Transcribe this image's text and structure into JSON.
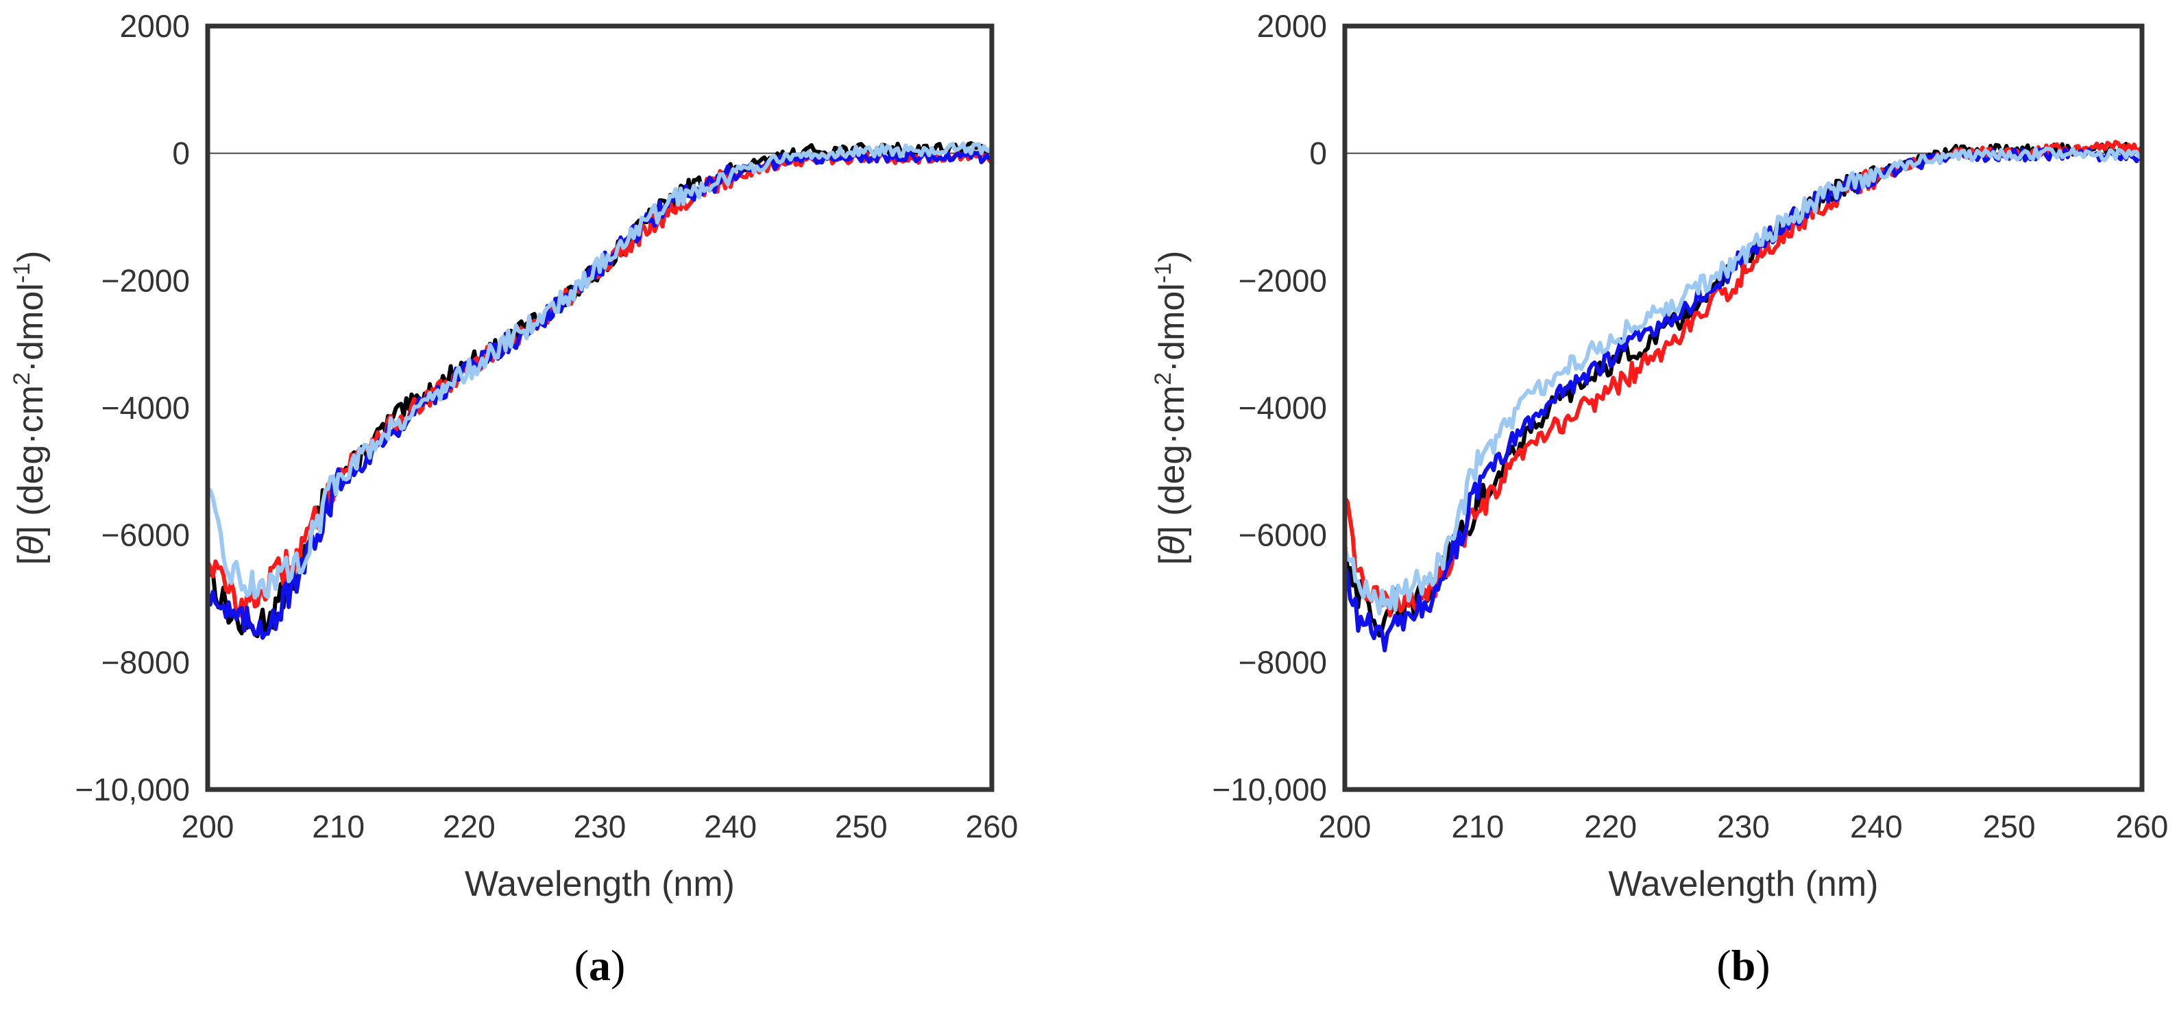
{
  "chart_data": [
    {
      "type": "line",
      "panel_label": {
        "open": "(",
        "letter": "a",
        "close": ")"
      },
      "title": "",
      "xlabel": "Wavelength (nm)",
      "ylabel_parts": [
        "[",
        "θ",
        "] (deg·cm",
        "2",
        "·dmol",
        "-1",
        ")"
      ],
      "xlim": [
        200,
        260
      ],
      "ylim": [
        -10000,
        2000
      ],
      "xticks": [
        200,
        210,
        220,
        230,
        240,
        250,
        260
      ],
      "xtick_labels": [
        "200",
        "210",
        "220",
        "230",
        "240",
        "250",
        "260"
      ],
      "yticks": [
        2000,
        0,
        -2000,
        -4000,
        -6000,
        -8000,
        -10000
      ],
      "ytick_labels": [
        "2000",
        "0",
        "−2000",
        "−4000",
        "−6000",
        "−8000",
        "−10,000"
      ],
      "zero_line": true,
      "grid": false,
      "series": [
        {
          "name": "black",
          "color": "#000000",
          "x": [
            200,
            201,
            202,
            203,
            204,
            205,
            206,
            207,
            208,
            209,
            210,
            212,
            214,
            216,
            218,
            220,
            222,
            224,
            226,
            228,
            230,
            232,
            234,
            236,
            238,
            240,
            242,
            244,
            246,
            248,
            250,
            252,
            254,
            256,
            258,
            260
          ],
          "values": [
            -6500,
            -7000,
            -7300,
            -7500,
            -7400,
            -7200,
            -6900,
            -6600,
            -6000,
            -5400,
            -5100,
            -4700,
            -4200,
            -3900,
            -3600,
            -3300,
            -3100,
            -2800,
            -2500,
            -2200,
            -1800,
            -1400,
            -1000,
            -650,
            -450,
            -300,
            -180,
            -60,
            40,
            50,
            60,
            70,
            60,
            80,
            90,
            60
          ]
        },
        {
          "name": "red",
          "color": "#ff1a1a",
          "x": [
            200,
            201,
            202,
            203,
            204,
            205,
            206,
            207,
            208,
            209,
            210,
            212,
            214,
            216,
            218,
            220,
            222,
            224,
            226,
            228,
            230,
            232,
            234,
            236,
            238,
            240,
            242,
            244,
            246,
            248,
            250,
            252,
            254,
            256,
            258,
            260
          ],
          "values": [
            -6300,
            -6700,
            -7000,
            -7100,
            -6900,
            -6700,
            -6500,
            -6300,
            -5900,
            -5400,
            -5100,
            -4600,
            -4300,
            -4000,
            -3700,
            -3400,
            -3100,
            -2850,
            -2550,
            -2200,
            -1850,
            -1450,
            -1100,
            -800,
            -550,
            -380,
            -250,
            -150,
            -120,
            -100,
            -80,
            -70,
            -60,
            -60,
            -70,
            -90
          ]
        },
        {
          "name": "blue",
          "color": "#1010ee",
          "x": [
            200,
            201,
            202,
            203,
            204,
            205,
            206,
            207,
            208,
            209,
            210,
            212,
            214,
            216,
            218,
            220,
            222,
            224,
            226,
            228,
            230,
            232,
            234,
            236,
            238,
            240,
            242,
            244,
            246,
            248,
            250,
            252,
            254,
            256,
            258,
            260
          ],
          "values": [
            -6800,
            -7100,
            -7300,
            -7400,
            -7400,
            -7300,
            -7000,
            -6700,
            -6200,
            -5600,
            -5200,
            -4800,
            -4400,
            -4000,
            -3700,
            -3400,
            -3100,
            -2850,
            -2550,
            -2200,
            -1800,
            -1400,
            -1000,
            -700,
            -500,
            -350,
            -230,
            -120,
            -80,
            -60,
            -50,
            -40,
            -40,
            -40,
            -50,
            -60
          ]
        },
        {
          "name": "light blue",
          "color": "#9cc8f4",
          "x": [
            200,
            201,
            202,
            203,
            204,
            205,
            206,
            207,
            208,
            209,
            210,
            212,
            214,
            216,
            218,
            220,
            222,
            224,
            226,
            228,
            230,
            232,
            234,
            236,
            238,
            240,
            242,
            244,
            246,
            248,
            250,
            252,
            254,
            256,
            258,
            260
          ],
          "values": [
            -5300,
            -6200,
            -6600,
            -6800,
            -6800,
            -6700,
            -6600,
            -6400,
            -6000,
            -5500,
            -5100,
            -4700,
            -4300,
            -4000,
            -3700,
            -3400,
            -3100,
            -2800,
            -2500,
            -2150,
            -1750,
            -1350,
            -1000,
            -700,
            -480,
            -330,
            -200,
            -100,
            -30,
            20,
            30,
            40,
            40,
            60,
            70,
            50
          ]
        }
      ]
    },
    {
      "type": "line",
      "panel_label": {
        "open": "(",
        "letter": "b",
        "close": ")"
      },
      "title": "",
      "xlabel": "Wavelength (nm)",
      "ylabel_parts": [
        "[",
        "θ",
        "] (deg·cm",
        "2",
        "·dmol",
        "-1",
        ")"
      ],
      "xlim": [
        200,
        260
      ],
      "ylim": [
        -10000,
        2000
      ],
      "xticks": [
        200,
        210,
        220,
        230,
        240,
        250,
        260
      ],
      "xtick_labels": [
        "200",
        "210",
        "220",
        "230",
        "240",
        "250",
        "260"
      ],
      "yticks": [
        2000,
        0,
        -2000,
        -4000,
        -6000,
        -8000,
        -10000
      ],
      "ytick_labels": [
        "2000",
        "0",
        "−2000",
        "−4000",
        "−6000",
        "−8000",
        "−10,000"
      ],
      "zero_line": true,
      "grid": false,
      "series": [
        {
          "name": "black",
          "color": "#000000",
          "x": [
            200,
            201,
            202,
            203,
            204,
            205,
            206,
            207,
            208,
            209,
            210,
            212,
            214,
            216,
            218,
            220,
            222,
            224,
            226,
            228,
            230,
            232,
            234,
            236,
            238,
            240,
            242,
            244,
            246,
            248,
            250,
            252,
            254,
            256,
            258,
            260
          ],
          "values": [
            -6200,
            -6900,
            -7300,
            -7400,
            -7300,
            -7100,
            -6900,
            -6700,
            -6300,
            -5900,
            -5500,
            -4900,
            -4300,
            -3900,
            -3600,
            -3300,
            -3100,
            -2800,
            -2500,
            -2100,
            -1700,
            -1300,
            -1000,
            -700,
            -500,
            -350,
            -200,
            -80,
            30,
            40,
            50,
            60,
            60,
            70,
            80,
            50
          ]
        },
        {
          "name": "red",
          "color": "#ff1a1a",
          "x": [
            200,
            201,
            202,
            203,
            204,
            205,
            206,
            207,
            208,
            209,
            210,
            212,
            214,
            216,
            218,
            220,
            222,
            224,
            226,
            228,
            230,
            232,
            234,
            236,
            238,
            240,
            242,
            244,
            246,
            248,
            250,
            252,
            254,
            256,
            258,
            260
          ],
          "values": [
            -5500,
            -6600,
            -7000,
            -7100,
            -7100,
            -7000,
            -6900,
            -6700,
            -6400,
            -6000,
            -5700,
            -5100,
            -4600,
            -4300,
            -4000,
            -3700,
            -3400,
            -3100,
            -2700,
            -2300,
            -1900,
            -1500,
            -1100,
            -800,
            -550,
            -370,
            -220,
            -100,
            -20,
            20,
            40,
            60,
            80,
            100,
            110,
            80
          ]
        },
        {
          "name": "blue",
          "color": "#1010ee",
          "x": [
            200,
            201,
            202,
            203,
            204,
            205,
            206,
            207,
            208,
            209,
            210,
            212,
            214,
            216,
            218,
            220,
            222,
            224,
            226,
            228,
            230,
            232,
            234,
            236,
            238,
            240,
            242,
            244,
            246,
            248,
            250,
            252,
            254,
            256,
            258,
            260
          ],
          "values": [
            -6600,
            -7300,
            -7500,
            -7600,
            -7500,
            -7300,
            -7100,
            -6800,
            -6300,
            -5800,
            -5300,
            -4700,
            -4200,
            -3800,
            -3500,
            -3200,
            -2900,
            -2650,
            -2350,
            -2000,
            -1650,
            -1300,
            -1000,
            -700,
            -500,
            -350,
            -220,
            -120,
            -60,
            -40,
            -30,
            -20,
            -20,
            -20,
            -30,
            -40
          ]
        },
        {
          "name": "light blue",
          "color": "#9cc8f4",
          "x": [
            200,
            201,
            202,
            203,
            204,
            205,
            206,
            207,
            208,
            209,
            210,
            212,
            214,
            216,
            218,
            220,
            222,
            224,
            226,
            228,
            230,
            232,
            234,
            236,
            238,
            240,
            242,
            244,
            246,
            248,
            250,
            252,
            254,
            256,
            258,
            260
          ],
          "values": [
            -6300,
            -6800,
            -7000,
            -7000,
            -6900,
            -6800,
            -6700,
            -6500,
            -6000,
            -5400,
            -4900,
            -4300,
            -3800,
            -3500,
            -3200,
            -2900,
            -2700,
            -2450,
            -2200,
            -1900,
            -1600,
            -1250,
            -950,
            -680,
            -480,
            -330,
            -200,
            -100,
            -50,
            -30,
            -20,
            -10,
            -10,
            -20,
            -30,
            -40
          ]
        }
      ]
    }
  ]
}
